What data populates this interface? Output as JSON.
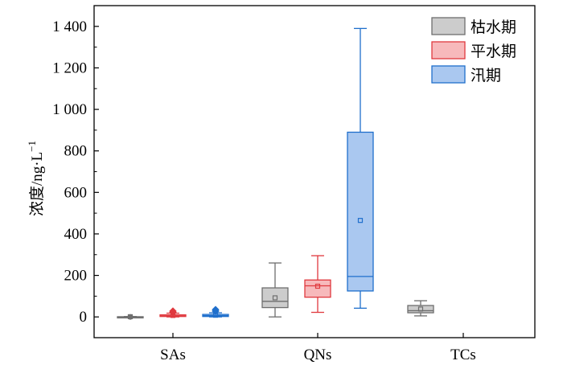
{
  "chart_data": {
    "type": "box",
    "title": "",
    "xlabel": "",
    "ylabel": "浓度/ng·L",
    "ylabel_superscript": "−1",
    "ylim": [
      -100,
      1500
    ],
    "yticks": [
      0,
      200,
      400,
      600,
      800,
      1000,
      1200,
      1400
    ],
    "ytick_labels": [
      "0",
      "200",
      "400",
      "600",
      "800",
      "1 000",
      "1 200",
      "1 400"
    ],
    "categories": [
      "SAs",
      "QNs",
      "TCs"
    ],
    "grid": false,
    "legend_position": "top-right",
    "series": [
      {
        "name": "枯水期",
        "fill": "#cccccc",
        "stroke": "#6e6e6e",
        "boxes": [
          {
            "category": "SAs",
            "min": 0,
            "q1": 0,
            "median": 0,
            "q3": 1,
            "max": 2,
            "mean": 1
          },
          {
            "category": "QNs",
            "min": 0,
            "q1": 45,
            "median": 75,
            "q3": 140,
            "max": 260,
            "mean": 92
          },
          {
            "category": "TCs",
            "min": 5,
            "q1": 20,
            "median": 30,
            "q3": 55,
            "max": 78,
            "mean": 38
          }
        ]
      },
      {
        "name": "平水期",
        "fill": "#f7b9bb",
        "stroke": "#e0393e",
        "boxes": [
          {
            "category": "SAs",
            "min": 0,
            "q1": 2,
            "median": 5,
            "q3": 10,
            "max": 18,
            "mean": 7,
            "outliers": [
              22,
              28
            ]
          },
          {
            "category": "QNs",
            "min": 22,
            "q1": 95,
            "median": 150,
            "q3": 178,
            "max": 295,
            "mean": 148
          }
        ]
      },
      {
        "name": "汛期",
        "fill": "#aac8f0",
        "stroke": "#1f6fcc",
        "boxes": [
          {
            "category": "SAs",
            "min": 0,
            "q1": 2,
            "median": 6,
            "q3": 12,
            "max": 20,
            "mean": 8,
            "outliers": [
              28,
              35
            ]
          },
          {
            "category": "QNs",
            "min": 42,
            "q1": 125,
            "median": 195,
            "q3": 890,
            "max": 1390,
            "mean": 465
          }
        ]
      }
    ]
  }
}
